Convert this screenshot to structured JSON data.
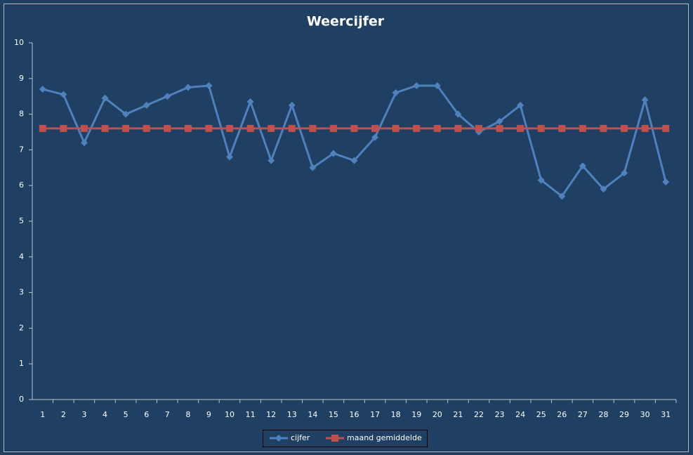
{
  "chart_data": {
    "type": "line",
    "title": "Weercijfer",
    "categories": [
      "1",
      "2",
      "3",
      "4",
      "5",
      "6",
      "7",
      "8",
      "9",
      "10",
      "11",
      "12",
      "13",
      "14",
      "15",
      "16",
      "17",
      "18",
      "19",
      "20",
      "21",
      "22",
      "23",
      "24",
      "25",
      "26",
      "27",
      "28",
      "29",
      "30",
      "31"
    ],
    "series": [
      {
        "name": "cijfer",
        "color": "#4f81bd",
        "marker": "diamond",
        "values": [
          8.7,
          8.55,
          7.2,
          8.45,
          8.0,
          8.25,
          8.5,
          8.75,
          8.8,
          6.8,
          8.35,
          6.7,
          8.25,
          6.5,
          6.9,
          6.7,
          7.35,
          8.6,
          8.8,
          8.8,
          8.0,
          7.5,
          7.8,
          8.25,
          6.15,
          5.7,
          6.55,
          5.9,
          6.35,
          8.4,
          6.1
        ]
      },
      {
        "name": "maand gemiddelde",
        "color": "#c0504d",
        "marker": "square",
        "values": [
          7.6,
          7.6,
          7.6,
          7.6,
          7.6,
          7.6,
          7.6,
          7.6,
          7.6,
          7.6,
          7.6,
          7.6,
          7.6,
          7.6,
          7.6,
          7.6,
          7.6,
          7.6,
          7.6,
          7.6,
          7.6,
          7.6,
          7.6,
          7.6,
          7.6,
          7.6,
          7.6,
          7.6,
          7.6,
          7.6,
          7.6
        ]
      }
    ],
    "ylim": [
      0,
      10
    ],
    "yticks": [
      0,
      1,
      2,
      3,
      4,
      5,
      6,
      7,
      8,
      9,
      10
    ],
    "grid": false,
    "legend": "bottom"
  }
}
